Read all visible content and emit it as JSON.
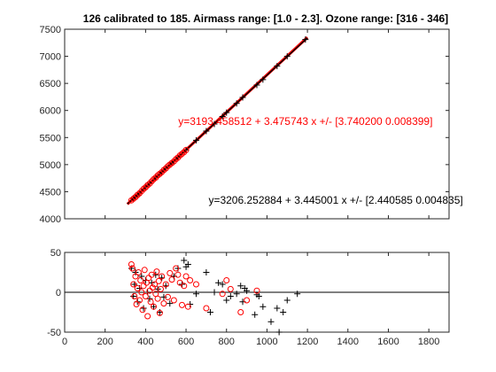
{
  "colors": {
    "series_a": "#ff0000",
    "series_b": "#000000",
    "axes": "#262626",
    "zero_line": "#000000"
  },
  "chart_data": [
    {
      "type": "scatter",
      "title": "126 calibrated to 185. Airmass range: [1.0 - 2.3]. Ozone range: [316 - 346]",
      "xlim": [
        0,
        1900
      ],
      "ylim": [
        4000,
        7500
      ],
      "x_ticks": [
        0,
        200,
        400,
        600,
        800,
        1000,
        1200,
        1400,
        1600,
        1800
      ],
      "y_ticks": [
        4000,
        4500,
        5000,
        5500,
        6000,
        6500,
        7000,
        7500
      ],
      "x_tick_labels_shown": false,
      "grid": false,
      "series": [
        {
          "marker": "cross",
          "color": "#000000",
          "points": [
            [
              340,
              4380
            ],
            [
              350,
              4420
            ],
            [
              360,
              4440
            ],
            [
              380,
              4510
            ],
            [
              400,
              4600
            ],
            [
              420,
              4660
            ],
            [
              450,
              4770
            ],
            [
              480,
              4860
            ],
            [
              500,
              4930
            ],
            [
              530,
              5030
            ],
            [
              560,
              5130
            ],
            [
              600,
              5270
            ],
            [
              650,
              5450
            ],
            [
              700,
              5620
            ],
            [
              740,
              5750
            ],
            [
              780,
              5890
            ],
            [
              800,
              5960
            ],
            [
              850,
              6130
            ],
            [
              880,
              6240
            ],
            [
              950,
              6470
            ],
            [
              980,
              6570
            ],
            [
              1050,
              6820
            ],
            [
              1100,
              7000
            ],
            [
              1190,
              7310
            ]
          ]
        },
        {
          "marker": "circle",
          "color": "#ff0000",
          "points": [
            [
              330,
              4340
            ],
            [
              340,
              4370
            ],
            [
              350,
              4400
            ],
            [
              360,
              4440
            ],
            [
              370,
              4470
            ],
            [
              380,
              4510
            ],
            [
              390,
              4550
            ],
            [
              400,
              4580
            ],
            [
              410,
              4620
            ],
            [
              420,
              4650
            ],
            [
              430,
              4690
            ],
            [
              440,
              4730
            ],
            [
              450,
              4760
            ],
            [
              460,
              4800
            ],
            [
              470,
              4830
            ],
            [
              480,
              4860
            ],
            [
              490,
              4900
            ],
            [
              500,
              4930
            ],
            [
              510,
              4970
            ],
            [
              520,
              5000
            ],
            [
              530,
              5030
            ],
            [
              540,
              5060
            ],
            [
              550,
              5100
            ],
            [
              560,
              5130
            ],
            [
              570,
              5170
            ],
            [
              580,
              5200
            ],
            [
              590,
              5230
            ],
            [
              600,
              5270
            ]
          ]
        }
      ],
      "fit_lines": [
        {
          "color": "#ff0000",
          "x": [
            310,
            1200
          ],
          "y": [
            4270,
            7350
          ]
        },
        {
          "color": "#000000",
          "x": [
            310,
            1200
          ],
          "y": [
            4274,
            7340
          ]
        }
      ],
      "annotations": [
        {
          "text": "y=3193.458512 + 3.475743 x +/- [3.740200 0.008399]",
          "color": "#ff0000",
          "x": 1190,
          "y": 5730,
          "anchor": "middle"
        },
        {
          "text": "y=3206.252884 + 3.445001 x +/- [2.440585 0.004835]",
          "color": "#000000",
          "x": 1340,
          "y": 4280,
          "anchor": "middle"
        }
      ]
    },
    {
      "type": "scatter",
      "xlim": [
        0,
        1900
      ],
      "ylim": [
        -50,
        50
      ],
      "x_ticks": [
        0,
        200,
        400,
        600,
        800,
        1000,
        1200,
        1400,
        1600,
        1800
      ],
      "x_tick_labels": [
        "0",
        "200",
        "400",
        "600",
        "800",
        "1000",
        "1200",
        "1400",
        "1600",
        "1800"
      ],
      "y_ticks": [
        -50,
        0,
        50
      ],
      "y_tick_labels": [
        "-50",
        "0",
        "50"
      ],
      "grid": false,
      "reference_line_y": 0,
      "series": [
        {
          "marker": "cross",
          "color": "#000000",
          "points": [
            [
              330,
              30
            ],
            [
              340,
              -5
            ],
            [
              345,
              10
            ],
            [
              350,
              25
            ],
            [
              360,
              -12
            ],
            [
              370,
              5
            ],
            [
              380,
              20
            ],
            [
              390,
              -20
            ],
            [
              400,
              15
            ],
            [
              410,
              0
            ],
            [
              420,
              -8
            ],
            [
              430,
              12
            ],
            [
              440,
              -18
            ],
            [
              450,
              22
            ],
            [
              460,
              4
            ],
            [
              470,
              -25
            ],
            [
              480,
              18
            ],
            [
              490,
              -6
            ],
            [
              500,
              8
            ],
            [
              520,
              -14
            ],
            [
              540,
              20
            ],
            [
              560,
              30
            ],
            [
              580,
              10
            ],
            [
              590,
              40
            ],
            [
              600,
              32
            ],
            [
              610,
              35
            ],
            [
              620,
              -15
            ],
            [
              650,
              -2
            ],
            [
              700,
              25
            ],
            [
              720,
              -25
            ],
            [
              740,
              0
            ],
            [
              760,
              12
            ],
            [
              780,
              10
            ],
            [
              800,
              -10
            ],
            [
              820,
              -5
            ],
            [
              850,
              -2
            ],
            [
              870,
              8
            ],
            [
              880,
              -12
            ],
            [
              890,
              5
            ],
            [
              900,
              2
            ],
            [
              940,
              -28
            ],
            [
              950,
              -3
            ],
            [
              960,
              -5
            ],
            [
              980,
              -18
            ],
            [
              1020,
              -37
            ],
            [
              1050,
              -20
            ],
            [
              1060,
              -50
            ],
            [
              1080,
              -25
            ],
            [
              1100,
              -10
            ],
            [
              1150,
              -2
            ]
          ]
        },
        {
          "marker": "circle",
          "color": "#ff0000",
          "points": [
            [
              330,
              35
            ],
            [
              335,
              30
            ],
            [
              340,
              10
            ],
            [
              345,
              -5
            ],
            [
              350,
              20
            ],
            [
              355,
              -15
            ],
            [
              360,
              5
            ],
            [
              365,
              25
            ],
            [
              370,
              -10
            ],
            [
              375,
              15
            ],
            [
              380,
              0
            ],
            [
              385,
              -22
            ],
            [
              390,
              8
            ],
            [
              395,
              28
            ],
            [
              400,
              -5
            ],
            [
              405,
              12
            ],
            [
              410,
              -30
            ],
            [
              415,
              18
            ],
            [
              420,
              2
            ],
            [
              425,
              -12
            ],
            [
              430,
              22
            ],
            [
              435,
              6
            ],
            [
              440,
              -18
            ],
            [
              445,
              10
            ],
            [
              450,
              -2
            ],
            [
              455,
              26
            ],
            [
              460,
              -8
            ],
            [
              465,
              14
            ],
            [
              470,
              -26
            ],
            [
              475,
              4
            ],
            [
              480,
              20
            ],
            [
              490,
              -14
            ],
            [
              500,
              10
            ],
            [
              510,
              -6
            ],
            [
              520,
              24
            ],
            [
              530,
              16
            ],
            [
              540,
              -10
            ],
            [
              550,
              30
            ],
            [
              560,
              22
            ],
            [
              570,
              12
            ],
            [
              580,
              -16
            ],
            [
              590,
              8
            ],
            [
              600,
              20
            ],
            [
              610,
              -18
            ],
            [
              620,
              15
            ],
            [
              650,
              10
            ],
            [
              700,
              -20
            ],
            [
              780,
              -2
            ],
            [
              800,
              15
            ],
            [
              820,
              4
            ],
            [
              870,
              -25
            ],
            [
              900,
              -10
            ],
            [
              950,
              2
            ]
          ]
        }
      ]
    }
  ]
}
